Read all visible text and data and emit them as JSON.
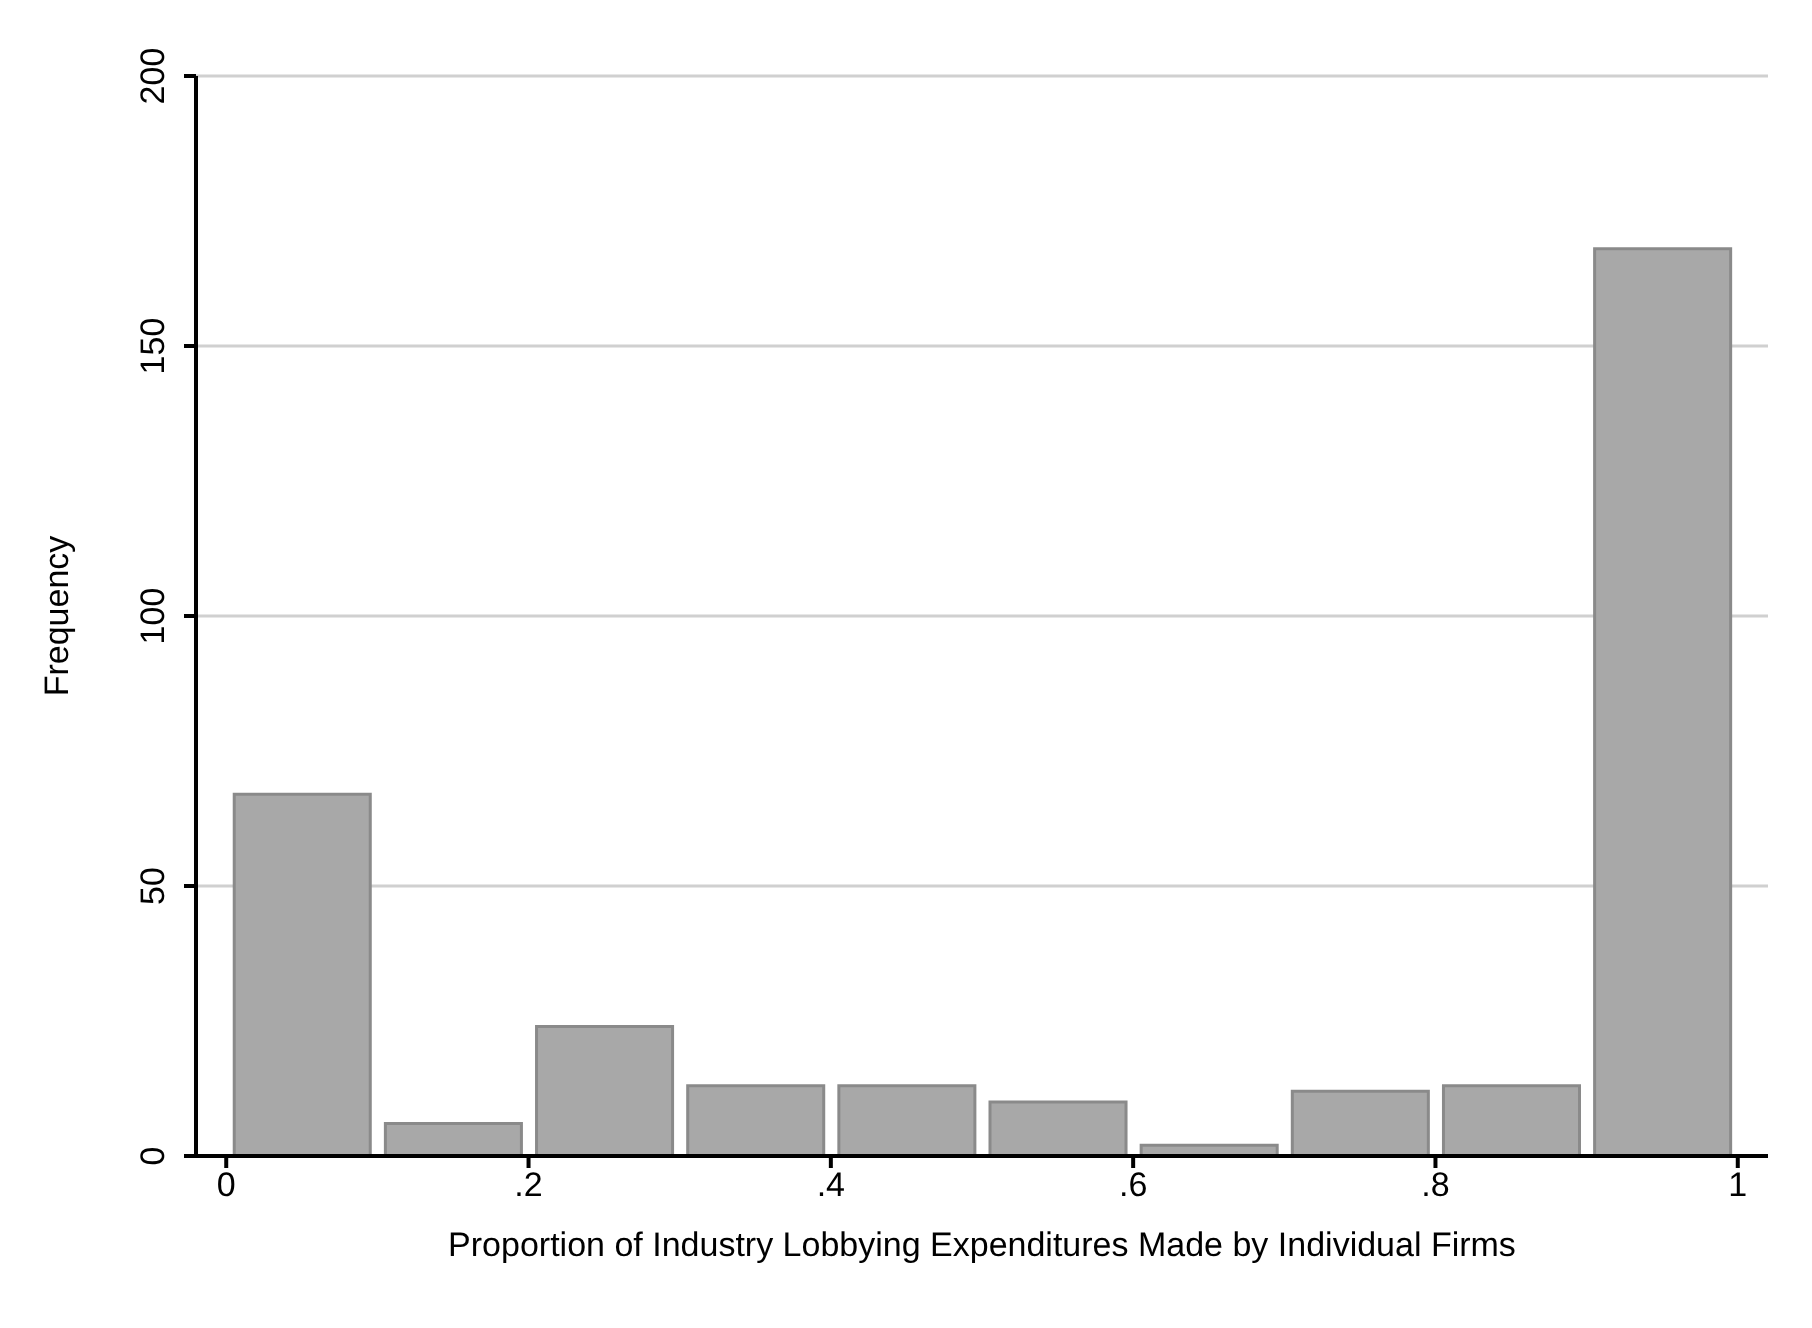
{
  "chart_data": {
    "type": "histogram",
    "xlabel": "Proportion of Industry Lobbying Expenditures Made by Individual Firms",
    "ylabel": "Frequency",
    "bins": [
      0,
      0.1,
      0.2,
      0.3,
      0.4,
      0.5,
      0.6,
      0.7,
      0.8,
      0.9,
      1
    ],
    "values": [
      67,
      6,
      24,
      13,
      13,
      10,
      2,
      12,
      13,
      168
    ],
    "color": "#a8a8a8",
    "xlim": [
      -0.02,
      1.02
    ],
    "xticks": [
      0,
      {
        "value": 0.2,
        "label": ".2"
      },
      {
        "value": 0.4,
        "label": ".4"
      },
      {
        "value": 0.6,
        "label": ".6"
      },
      {
        "value": 0.8,
        "label": ".8"
      },
      1
    ],
    "ylim": [
      0,
      200
    ],
    "yticks": [
      0,
      50,
      100,
      150,
      200
    ],
    "grid": "y"
  }
}
